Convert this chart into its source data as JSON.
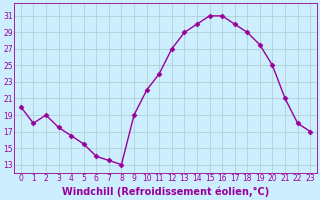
{
  "x": [
    0,
    1,
    2,
    3,
    4,
    5,
    6,
    7,
    8,
    9,
    10,
    11,
    12,
    13,
    14,
    15,
    16,
    17,
    18,
    19,
    20,
    21,
    22,
    23
  ],
  "y": [
    20.0,
    18.0,
    19.0,
    17.5,
    16.5,
    15.5,
    14.0,
    13.5,
    13.0,
    19.0,
    22.0,
    24.0,
    27.0,
    29.0,
    30.0,
    31.0,
    31.0,
    30.0,
    29.0,
    27.5,
    25.0,
    21.0,
    18.0,
    17.0
  ],
  "line_color": "#990099",
  "marker": "D",
  "marker_size": 2.5,
  "bg_color": "#cceeff",
  "grid_color": "#aacccc",
  "xlabel": "Windchill (Refroidissement éolien,°C)",
  "xlabel_fontsize": 7,
  "ylabel_ticks": [
    13,
    15,
    17,
    19,
    21,
    23,
    25,
    27,
    29,
    31
  ],
  "xtick_labels": [
    "0",
    "1",
    "2",
    "3",
    "4",
    "5",
    "6",
    "7",
    "8",
    "9",
    "10",
    "11",
    "12",
    "13",
    "14",
    "15",
    "16",
    "17",
    "18",
    "19",
    "20",
    "21",
    "22",
    "23"
  ],
  "ylim": [
    12.0,
    32.5
  ],
  "xlim": [
    -0.5,
    23.5
  ],
  "tick_fontsize": 5.5,
  "linewidth": 1.0
}
